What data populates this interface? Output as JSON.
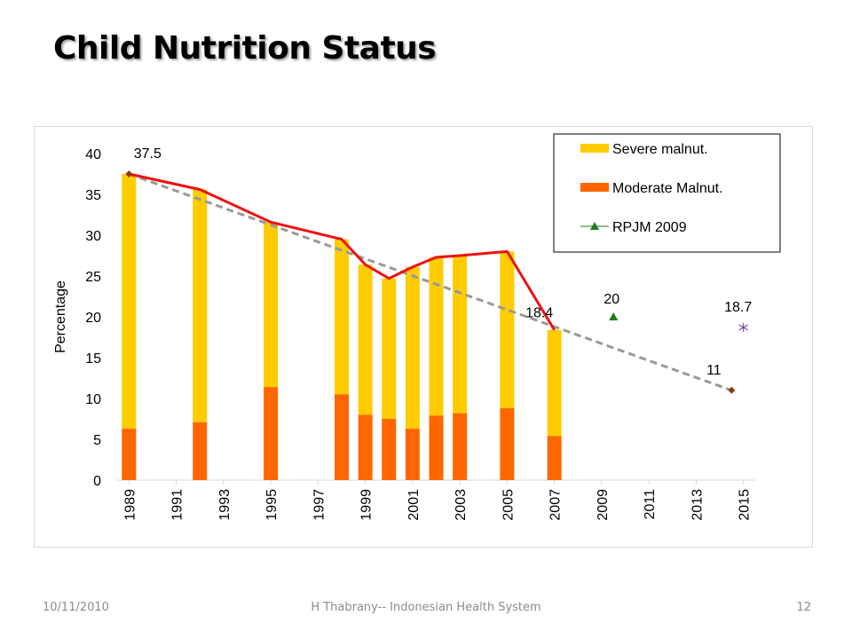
{
  "slide": {
    "title": "Child Nutrition Status",
    "footer_date": "10/11/2010",
    "footer_center": "H Thabrany-- Indonesian Health System",
    "footer_page": "12"
  },
  "chart_data": {
    "type": "bar",
    "stacked": true,
    "ylabel": "Percentage",
    "ylim": [
      0,
      40
    ],
    "y_ticks": [
      0,
      5,
      10,
      15,
      20,
      25,
      30,
      35,
      40
    ],
    "xlim": [
      1988.5,
      2015.5
    ],
    "x_ticks": [
      1989,
      1991,
      1993,
      1995,
      1997,
      1999,
      2001,
      2003,
      2005,
      2007,
      2009,
      2011,
      2013,
      2015
    ],
    "colors": {
      "severe": "#ffcc00",
      "moderate": "#ff6600",
      "total_line": "#ee1111",
      "trend": "#999999",
      "rpjm": "#1e7b1e",
      "target": "#7030a0",
      "marker": "#8b3a0f"
    },
    "legend_position": "top-right",
    "legend": [
      {
        "key": "severe",
        "label": "Severe malnut."
      },
      {
        "key": "moderate",
        "label": "Moderate Malnut."
      },
      {
        "key": "rpjm",
        "label": "RPJM 2009"
      }
    ],
    "bars": [
      {
        "x": 1989,
        "moderate": 6.3,
        "total": 37.5
      },
      {
        "x": 1992,
        "moderate": 7.1,
        "total": 35.6
      },
      {
        "x": 1995,
        "moderate": 11.4,
        "total": 31.6
      },
      {
        "x": 1998,
        "moderate": 10.5,
        "total": 29.5
      },
      {
        "x": 1999,
        "moderate": 8.0,
        "total": 26.4
      },
      {
        "x": 2000,
        "moderate": 7.5,
        "total": 24.7
      },
      {
        "x": 2001,
        "moderate": 6.3,
        "total": 26.1
      },
      {
        "x": 2002,
        "moderate": 7.9,
        "total": 27.3
      },
      {
        "x": 2003,
        "moderate": 8.2,
        "total": 27.5
      },
      {
        "x": 2005,
        "moderate": 8.8,
        "total": 28.0
      },
      {
        "x": 2007,
        "moderate": 5.4,
        "total": 18.4
      }
    ],
    "trend": {
      "from": [
        1989,
        37.5
      ],
      "to": [
        2014.5,
        11
      ]
    },
    "rpjm_point": {
      "x": 2009.5,
      "y": 20,
      "label": "20"
    },
    "target_point": {
      "x": 2015,
      "y": 18.7,
      "label": "18.7"
    },
    "annotations": [
      {
        "x": 1989,
        "y": 37.5,
        "label": "37.5"
      },
      {
        "x": 2007,
        "y": 18.4,
        "label": "18.4"
      },
      {
        "x": 2014.5,
        "y": 11,
        "label": "11"
      }
    ]
  }
}
